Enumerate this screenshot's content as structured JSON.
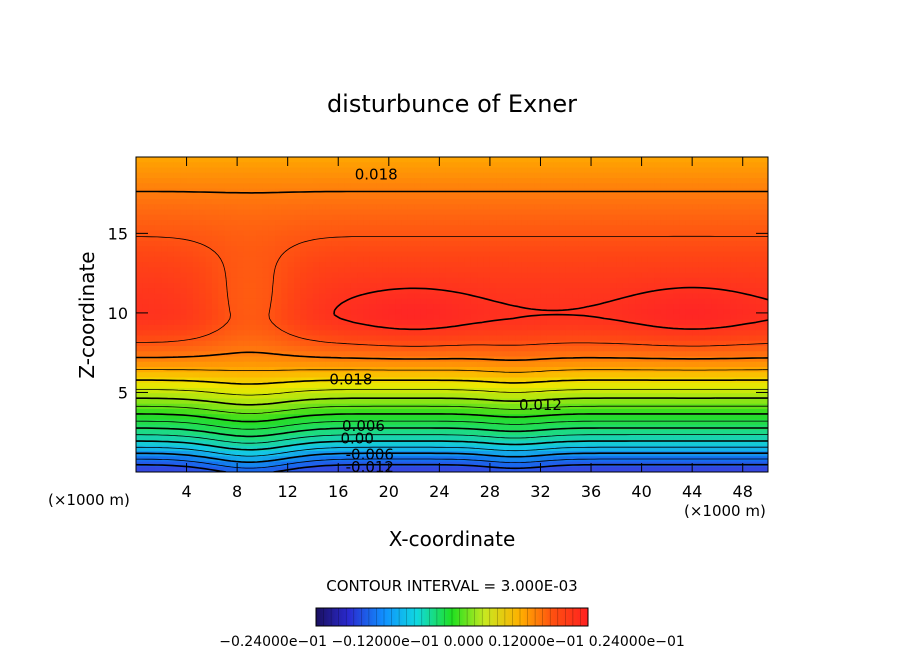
{
  "chart_data": {
    "type": "heatmap",
    "title": "disturbunce of Exner",
    "xlabel": "X-coordinate",
    "ylabel": "Z-coordinate",
    "x_unit_label_left": "(×1000 m)",
    "x_unit_label_right": "(×1000 m)",
    "xlim": [
      0,
      50
    ],
    "ylim": [
      0,
      19.8
    ],
    "xticks": [
      4,
      8,
      12,
      16,
      20,
      24,
      28,
      32,
      36,
      40,
      44,
      48
    ],
    "yticks": [
      5,
      10,
      15
    ],
    "contour_interval_text": "CONTOUR INTERVAL = 3.000E-03",
    "contour_labels": [
      {
        "x": 19,
        "z": 18.7,
        "text": "0.018"
      },
      {
        "x": 17,
        "z": 5.8,
        "text": "0.018"
      },
      {
        "x": 32,
        "z": 4.2,
        "text": "0.012"
      },
      {
        "x": 18,
        "z": 2.9,
        "text": "0.006"
      },
      {
        "x": 17.5,
        "z": 2.1,
        "text": "0.00"
      },
      {
        "x": 18.5,
        "z": 1.1,
        "text": "-0.006"
      },
      {
        "x": 18.5,
        "z": 0.3,
        "text": "-0.012"
      }
    ],
    "max_contour_level": 0.024,
    "maxima": [
      {
        "x": 22,
        "z": 9.6,
        "value": 0.0245
      },
      {
        "x": 44,
        "z": 9.7,
        "value": 0.0248
      },
      {
        "x": 0,
        "z": 10,
        "value": 0.0235
      }
    ],
    "colorbar": {
      "min": -0.024,
      "max": 0.024,
      "ticks_text": "−0.24000e−01 −0.12000e−01 0.000 0.12000e−01 0.24000e−01"
    }
  }
}
